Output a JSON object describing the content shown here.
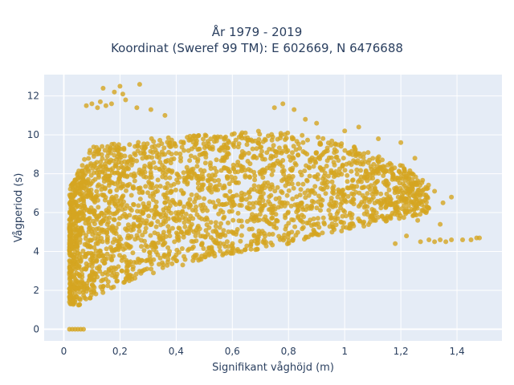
{
  "chart_data": {
    "type": "scatter",
    "title_lines": [
      "År 1979 - 2019",
      "Koordinat (Sweref 99 TM): E 602669, N 6476688"
    ],
    "xlabel": "Signifikant våghöjd (m)",
    "ylabel": "Vågperiod (s)",
    "xlim": [
      -0.07,
      1.56
    ],
    "ylim": [
      -0.6,
      13.1
    ],
    "x_ticks": [
      0,
      0.2,
      0.4,
      0.6,
      0.8,
      1,
      1.2,
      1.4
    ],
    "x_tick_labels": [
      "0",
      "0,2",
      "0,4",
      "0,6",
      "0,8",
      "1",
      "1,2",
      "1,4"
    ],
    "y_ticks": [
      0,
      2,
      4,
      6,
      8,
      10,
      12
    ],
    "y_tick_labels": [
      "0",
      "2",
      "4",
      "6",
      "8",
      "10",
      "12"
    ],
    "grid": true,
    "legend": "none",
    "series": [
      {
        "color": "#D4A520",
        "density_envelope": {
          "x": [
            0.02,
            0.05,
            0.1,
            0.2,
            0.3,
            0.4,
            0.5,
            0.6,
            0.7,
            0.8,
            0.9,
            1.0,
            1.1,
            1.2,
            1.3
          ],
          "y_low": [
            1.3,
            1.2,
            1.6,
            2.3,
            2.8,
            3.2,
            3.6,
            3.9,
            4.1,
            4.4,
            4.7,
            5.0,
            5.4,
            5.7,
            6.0
          ],
          "y_high": [
            7.2,
            8.2,
            9.4,
            9.6,
            9.8,
            9.9,
            10.0,
            10.1,
            10.2,
            10.1,
            9.9,
            9.6,
            9.0,
            8.5,
            7.5
          ]
        },
        "outliers": [
          {
            "x": 0.02,
            "y": 0.0
          },
          {
            "x": 0.03,
            "y": 0.0
          },
          {
            "x": 0.04,
            "y": 0.0
          },
          {
            "x": 0.05,
            "y": 0.0
          },
          {
            "x": 0.06,
            "y": 0.0
          },
          {
            "x": 0.07,
            "y": 0.0
          },
          {
            "x": 0.08,
            "y": 11.5
          },
          {
            "x": 0.1,
            "y": 11.6
          },
          {
            "x": 0.12,
            "y": 11.4
          },
          {
            "x": 0.13,
            "y": 11.7
          },
          {
            "x": 0.15,
            "y": 11.5
          },
          {
            "x": 0.17,
            "y": 11.6
          },
          {
            "x": 0.14,
            "y": 12.4
          },
          {
            "x": 0.18,
            "y": 12.2
          },
          {
            "x": 0.2,
            "y": 12.5
          },
          {
            "x": 0.21,
            "y": 12.1
          },
          {
            "x": 0.27,
            "y": 12.6
          },
          {
            "x": 0.22,
            "y": 11.8
          },
          {
            "x": 0.26,
            "y": 11.4
          },
          {
            "x": 0.31,
            "y": 11.3
          },
          {
            "x": 0.36,
            "y": 11.0
          },
          {
            "x": 0.78,
            "y": 11.6
          },
          {
            "x": 0.75,
            "y": 11.4
          },
          {
            "x": 0.82,
            "y": 11.3
          },
          {
            "x": 0.86,
            "y": 10.8
          },
          {
            "x": 0.9,
            "y": 10.6
          },
          {
            "x": 1.0,
            "y": 10.2
          },
          {
            "x": 1.05,
            "y": 10.4
          },
          {
            "x": 1.12,
            "y": 9.8
          },
          {
            "x": 1.2,
            "y": 9.6
          },
          {
            "x": 1.25,
            "y": 8.8
          },
          {
            "x": 1.27,
            "y": 4.5
          },
          {
            "x": 1.3,
            "y": 4.6
          },
          {
            "x": 1.32,
            "y": 4.5
          },
          {
            "x": 1.34,
            "y": 4.6
          },
          {
            "x": 1.36,
            "y": 4.5
          },
          {
            "x": 1.38,
            "y": 4.6
          },
          {
            "x": 1.42,
            "y": 4.6
          },
          {
            "x": 1.45,
            "y": 4.6
          },
          {
            "x": 1.47,
            "y": 4.7
          },
          {
            "x": 1.48,
            "y": 4.7
          },
          {
            "x": 1.35,
            "y": 6.5
          },
          {
            "x": 1.38,
            "y": 6.8
          },
          {
            "x": 1.32,
            "y": 7.1
          },
          {
            "x": 1.29,
            "y": 6.0
          },
          {
            "x": 1.26,
            "y": 5.6
          },
          {
            "x": 1.34,
            "y": 5.4
          },
          {
            "x": 1.22,
            "y": 4.8
          },
          {
            "x": 1.18,
            "y": 4.4
          }
        ]
      }
    ]
  }
}
